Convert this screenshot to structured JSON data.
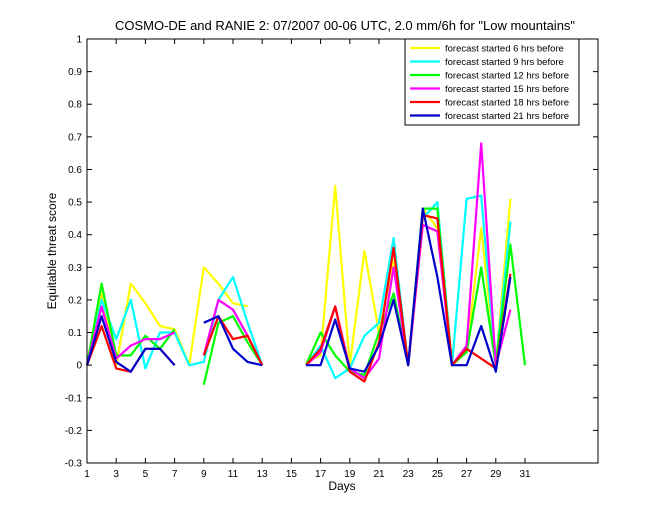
{
  "chart_data": {
    "type": "line",
    "title": "COSMO-DE and RANIE 2: 07/2007 00-06 UTC, 2.0 mm/6h for \"Low mountains\"",
    "xlabel": "Days",
    "ylabel": "Equitable threat score",
    "xlim": [
      1,
      36
    ],
    "ylim": [
      -0.3,
      1
    ],
    "xticks": [
      1,
      3,
      5,
      7,
      9,
      11,
      13,
      15,
      17,
      19,
      21,
      23,
      25,
      27,
      29,
      31
    ],
    "yticks": [
      -0.3,
      -0.2,
      -0.1,
      0,
      0.1,
      0.2,
      0.3,
      0.4,
      0.5,
      0.6,
      0.7,
      0.8,
      0.9,
      1
    ],
    "ytick_labels": [
      "-0.3",
      "-0.2",
      "-0.1",
      "0",
      "0.1",
      "0.2",
      "0.3",
      "0.4",
      "0.5",
      "0.6",
      "0.7",
      "0.8",
      "0.9",
      "1"
    ],
    "legend_position": "top-right",
    "x": [
      1,
      2,
      3,
      4,
      5,
      6,
      7,
      8,
      9,
      10,
      11,
      12,
      13,
      14,
      15,
      16,
      17,
      18,
      19,
      20,
      21,
      22,
      23,
      24,
      25,
      26,
      27,
      28,
      29,
      30,
      31
    ],
    "series": [
      {
        "name": "forecast started 6 hrs before",
        "color": "#ffff00",
        "values": [
          0.0,
          0.22,
          0.0,
          0.25,
          0.19,
          0.12,
          0.11,
          0.0,
          0.3,
          0.25,
          0.19,
          0.18,
          null,
          null,
          null,
          0.01,
          0.03,
          0.55,
          0.0,
          0.35,
          0.1,
          0.32,
          0.0,
          0.48,
          0.42,
          0.0,
          0.04,
          0.42,
          0.0,
          0.51,
          null
        ]
      },
      {
        "name": "forecast started 9 hrs before",
        "color": "#00ffff",
        "values": [
          0.0,
          0.2,
          0.08,
          0.2,
          -0.01,
          0.1,
          0.1,
          0.0,
          0.01,
          0.2,
          0.27,
          0.13,
          0.0,
          null,
          null,
          0.0,
          0.06,
          -0.04,
          -0.01,
          0.09,
          0.13,
          0.39,
          0.0,
          0.45,
          0.5,
          0.0,
          0.51,
          0.52,
          0.0,
          0.44,
          null
        ]
      },
      {
        "name": "forecast started 12 hrs before",
        "color": "#00ff00",
        "values": [
          0.0,
          0.25,
          0.03,
          0.03,
          0.09,
          0.05,
          0.11,
          null,
          -0.06,
          0.13,
          0.15,
          0.07,
          0.0,
          null,
          null,
          0.0,
          0.1,
          0.03,
          -0.02,
          -0.03,
          0.1,
          0.22,
          0.0,
          0.48,
          0.48,
          0.0,
          0.04,
          0.3,
          0.0,
          0.37,
          0.0
        ]
      },
      {
        "name": "forecast started 15 hrs before",
        "color": "#ff00ff",
        "values": [
          0.0,
          0.18,
          0.02,
          0.06,
          0.08,
          0.08,
          0.1,
          null,
          0.03,
          0.2,
          0.17,
          0.09,
          0.0,
          null,
          null,
          0.0,
          0.04,
          0.18,
          -0.01,
          -0.04,
          0.02,
          0.3,
          0.0,
          0.43,
          0.41,
          0.0,
          0.06,
          0.68,
          0.0,
          0.17,
          null
        ]
      },
      {
        "name": "forecast started 18 hrs before",
        "color": "#ff0000",
        "values": [
          0.0,
          0.12,
          -0.01,
          -0.02,
          0.05,
          0.05,
          0.0,
          null,
          0.03,
          0.15,
          0.08,
          0.09,
          0.0,
          null,
          null,
          0.0,
          0.05,
          0.18,
          -0.02,
          -0.05,
          0.07,
          0.36,
          0.0,
          0.46,
          0.45,
          0.0,
          0.05,
          0.02,
          -0.01,
          0.28,
          null
        ]
      },
      {
        "name": "forecast started 21 hrs before",
        "color": "#0000cc",
        "values": [
          0.0,
          0.15,
          0.01,
          -0.02,
          0.05,
          0.05,
          0.0,
          null,
          0.13,
          0.15,
          0.05,
          0.01,
          0.0,
          null,
          null,
          0.0,
          0.0,
          0.14,
          -0.01,
          -0.02,
          0.06,
          0.2,
          0.0,
          0.48,
          0.27,
          0.0,
          0.0,
          0.12,
          -0.02,
          0.27,
          null
        ]
      }
    ]
  }
}
